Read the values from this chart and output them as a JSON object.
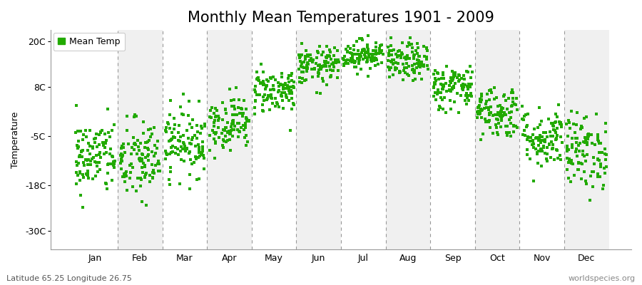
{
  "title": "Monthly Mean Temperatures 1901 - 2009",
  "ylabel": "Temperature",
  "footer_left": "Latitude 65.25 Longitude 26.75",
  "footer_right": "worldspecies.org",
  "legend_label": "Mean Temp",
  "dot_color": "#22aa00",
  "background_color": "#ffffff",
  "band_color_odd": "#f0f0f0",
  "band_color_even": "#ffffff",
  "dashed_line_color": "#999999",
  "ytick_labels": [
    "20C",
    "8C",
    "-5C",
    "-18C",
    "-30C"
  ],
  "ytick_values": [
    20,
    8,
    -5,
    -18,
    -30
  ],
  "ylim": [
    -35,
    23
  ],
  "xlim": [
    -0.5,
    12.5
  ],
  "months": [
    "Jan",
    "Feb",
    "Mar",
    "Apr",
    "May",
    "Jun",
    "Jul",
    "Aug",
    "Sep",
    "Oct",
    "Nov",
    "Dec"
  ],
  "monthly_means": [
    -10.5,
    -11.5,
    -6.5,
    -1.5,
    7.0,
    13.5,
    16.5,
    14.5,
    8.0,
    1.5,
    -5.5,
    -9.0
  ],
  "monthly_stds": [
    5.0,
    5.5,
    4.5,
    3.5,
    3.0,
    2.5,
    2.0,
    2.5,
    3.0,
    3.5,
    4.0,
    5.0
  ],
  "n_years": 109,
  "seed": 42,
  "dot_size": 5,
  "dot_alpha": 1.0,
  "title_fontsize": 15,
  "axis_fontsize": 9,
  "tick_fontsize": 9,
  "legend_fontsize": 9,
  "footer_fontsize": 8
}
